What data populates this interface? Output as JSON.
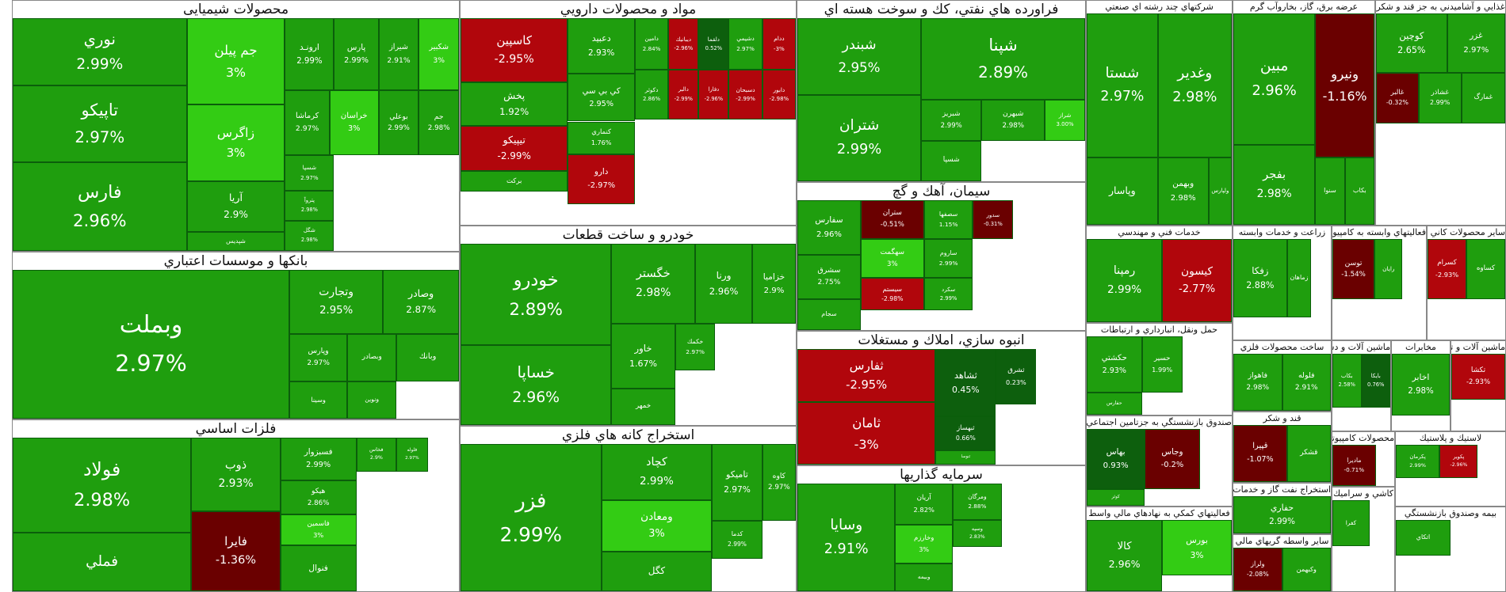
{
  "colors": {
    "up_strong": "#1f9e0e",
    "up_bright": "#33cc14",
    "up_dark": "#0d5f0d",
    "down": "#b1060c",
    "down_dark": "#6a0000"
  },
  "sectors": [
    {
      "id": "chem",
      "title": "محصولات شیمیایی",
      "tiles": [
        {
          "sym": "نوري",
          "chg": "2.99%"
        },
        {
          "sym": "تاپيكو",
          "chg": "2.97%"
        },
        {
          "sym": "فارس",
          "chg": "2.96%"
        },
        {
          "sym": "جم پيلن",
          "chg": "3%"
        },
        {
          "sym": "زاگرس",
          "chg": "3%"
        },
        {
          "sym": "آريا",
          "chg": "2.9%"
        },
        {
          "sym": "شپديس",
          "chg": ""
        },
        {
          "sym": "ارونـد",
          "chg": "2.99%"
        },
        {
          "sym": "پارس",
          "chg": "2.99%"
        },
        {
          "sym": "شيراز",
          "chg": "2.91%"
        },
        {
          "sym": "شكبير",
          "chg": "3%"
        },
        {
          "sym": "كرماشا",
          "chg": "2.97%"
        },
        {
          "sym": "خراسان",
          "chg": "3%"
        },
        {
          "sym": "بوعلي",
          "chg": "2.99%"
        },
        {
          "sym": "جم",
          "chg": "2.98%"
        },
        {
          "sym": "شسپا",
          "chg": "2.97%"
        },
        {
          "sym": "پتروآ",
          "chg": "2.98%"
        },
        {
          "sym": "شگل",
          "chg": "2.98%"
        },
        {
          "sym": "شغدير",
          "chg": "3%"
        }
      ]
    },
    {
      "id": "pharma",
      "title": "مواد و محصولات دارويي",
      "tiles": [
        {
          "sym": "كاسپين",
          "chg": "-2.95%"
        },
        {
          "sym": "پخش",
          "chg": "1.92%"
        },
        {
          "sym": "تيپيكو",
          "chg": "-2.99%"
        },
        {
          "sym": "بركت",
          "chg": ""
        },
        {
          "sym": "دعبيد",
          "chg": "2.93%"
        },
        {
          "sym": "كي بي سي",
          "chg": "2.95%"
        },
        {
          "sym": "كنماري",
          "chg": "1.76%"
        },
        {
          "sym": "دارو",
          "chg": "-2.97%"
        },
        {
          "sym": "دامين",
          "chg": "2.84%"
        },
        {
          "sym": "ديبانيك",
          "chg": "-2.96%"
        },
        {
          "sym": "دلقما",
          "chg": "0.52%"
        },
        {
          "sym": "دشيمي",
          "chg": "2.97%"
        },
        {
          "sym": "ددام",
          "chg": "-3%"
        },
        {
          "sym": "دكوثر",
          "chg": "2.86%"
        },
        {
          "sym": "دالبر",
          "chg": "-2.99%"
        },
        {
          "sym": "دفارا",
          "chg": "-2.96%"
        },
        {
          "sym": "دسبحان",
          "chg": "-2.99%"
        },
        {
          "sym": "دابور",
          "chg": "-2.98%"
        }
      ]
    },
    {
      "id": "oil",
      "title": "فراورده هاي نفتي، كك و سوخت هسته اي",
      "tiles": [
        {
          "sym": "شبندر",
          "chg": "2.95%"
        },
        {
          "sym": "شتران",
          "chg": "2.99%"
        },
        {
          "sym": "شپنا",
          "chg": "2.89%"
        },
        {
          "sym": "شبريز",
          "chg": "2.99%"
        },
        {
          "sym": "شبهرن",
          "chg": "2.98%"
        },
        {
          "sym": "شراز",
          "chg": "3.00%"
        },
        {
          "sym": "شسپا",
          "chg": ""
        }
      ]
    },
    {
      "id": "multi",
      "title": "شركتهاي چند رشته اي صنعتي",
      "tiles": [
        {
          "sym": "شستا",
          "chg": "2.97%"
        },
        {
          "sym": "وغدير",
          "chg": "2.98%"
        },
        {
          "sym": "وپاسار",
          "chg": ""
        },
        {
          "sym": "وبهمن",
          "chg": "2.98%"
        },
        {
          "sym": "ولپارس",
          "chg": ""
        }
      ]
    },
    {
      "id": "utility",
      "title": "عرضه برق، گاز، بخاروآب گرم",
      "tiles": [
        {
          "sym": "مبين",
          "chg": "2.96%"
        },
        {
          "sym": "بفجر",
          "chg": "2.98%"
        },
        {
          "sym": "ونيرو",
          "chg": "-1.16%"
        },
        {
          "sym": "سنوا",
          "chg": ""
        },
        {
          "sym": "بكاب",
          "chg": ""
        }
      ]
    },
    {
      "id": "food",
      "title": "غذايي و آشاميدني به جز قند و شكر",
      "tiles": [
        {
          "sym": "كوچين",
          "chg": "2.65%"
        },
        {
          "sym": "غزر",
          "chg": "2.97%"
        },
        {
          "sym": "غالبر",
          "chg": "-0.32%"
        },
        {
          "sym": "غشاذر",
          "chg": "2.99%"
        },
        {
          "sym": "غمارگ",
          "chg": ""
        }
      ]
    },
    {
      "id": "banks",
      "title": "بانكها و موسسات اعتباري",
      "tiles": [
        {
          "sym": "وبملت",
          "chg": "2.97%"
        },
        {
          "sym": "وتجارت",
          "chg": "2.95%"
        },
        {
          "sym": "وصادر",
          "chg": "2.87%"
        },
        {
          "sym": "وپارس",
          "chg": "2.97%"
        },
        {
          "sym": "وبصادر",
          "chg": ""
        },
        {
          "sym": "وبانك",
          "chg": ""
        },
        {
          "sym": "وسينا",
          "chg": ""
        },
        {
          "sym": "ونوين",
          "chg": ""
        }
      ]
    },
    {
      "id": "auto",
      "title": "خودرو و ساخت قطعات",
      "tiles": [
        {
          "sym": "خودرو",
          "chg": "2.89%"
        },
        {
          "sym": "خساپا",
          "chg": "2.96%"
        },
        {
          "sym": "خگستر",
          "chg": "2.98%"
        },
        {
          "sym": "ورنا",
          "chg": "2.96%"
        },
        {
          "sym": "خزاميا",
          "chg": "2.9%"
        },
        {
          "sym": "خاور",
          "chg": "1.67%"
        },
        {
          "sym": "خكمك",
          "chg": "2.97%"
        },
        {
          "sym": "خمهر",
          "chg": ""
        }
      ]
    },
    {
      "id": "cement",
      "title": "سيمان، آهك و گچ",
      "tiles": [
        {
          "sym": "سفارس",
          "chg": "2.96%"
        },
        {
          "sym": "سشرق",
          "chg": "2.75%"
        },
        {
          "sym": "سجام",
          "chg": ""
        },
        {
          "sym": "ستران",
          "chg": "-0.51%"
        },
        {
          "sym": "سصفها",
          "chg": "1.15%"
        },
        {
          "sym": "سدور",
          "chg": "-0.31%"
        },
        {
          "sym": "سهگمت",
          "chg": "3%"
        },
        {
          "sym": "ساروم",
          "chg": "2.99%"
        },
        {
          "sym": "سيستم",
          "chg": "-2.98%"
        },
        {
          "sym": "سكرد",
          "chg": "2.99%"
        }
      ]
    },
    {
      "id": "realestate",
      "title": "انبوه سازي، املاك و مستغلات",
      "tiles": [
        {
          "sym": "ثفارس",
          "chg": "-2.95%"
        },
        {
          "sym": "ثامان",
          "chg": "-3%"
        },
        {
          "sym": "ثشاهد",
          "chg": "0.45%"
        },
        {
          "sym": "ثبهساز",
          "chg": "0.66%"
        },
        {
          "sym": "ثشرق",
          "chg": "0.23%"
        },
        {
          "sym": "ثنوسا",
          "chg": ""
        }
      ]
    },
    {
      "id": "metals",
      "title": "فلزات اساسي",
      "tiles": [
        {
          "sym": "فولاد",
          "chg": "2.98%"
        },
        {
          "sym": "فملي",
          "chg": ""
        },
        {
          "sym": "ذوب",
          "chg": "2.93%"
        },
        {
          "sym": "فايرا",
          "chg": "-1.36%"
        },
        {
          "sym": "فسبزوار",
          "chg": "2.99%"
        },
        {
          "sym": "هيكو",
          "chg": "2.86%"
        },
        {
          "sym": "فاسمين",
          "chg": "3%"
        },
        {
          "sym": "فنوال",
          "chg": ""
        },
        {
          "sym": "فخاس",
          "chg": "2.9%"
        },
        {
          "sym": "فلوله",
          "chg": "2.97%"
        }
      ]
    },
    {
      "id": "mining",
      "title": "استخراج كانه هاي فلزي",
      "tiles": [
        {
          "sym": "فزر",
          "chg": "2.99%"
        },
        {
          "sym": "كچاد",
          "chg": "2.99%"
        },
        {
          "sym": "ومعادن",
          "chg": "3%"
        },
        {
          "sym": "كگل",
          "chg": ""
        },
        {
          "sym": "تاميكو",
          "chg": "2.97%"
        },
        {
          "sym": "كاوه",
          "chg": "2.97%"
        },
        {
          "sym": "كدما",
          "chg": "2.99%"
        }
      ]
    },
    {
      "id": "investment",
      "title": "سرمايه گذاريها",
      "tiles": [
        {
          "sym": "وسايا",
          "chg": "2.91%"
        },
        {
          "sym": "آريان",
          "chg": "2.82%"
        },
        {
          "sym": "وخارزم",
          "chg": "3%"
        },
        {
          "sym": "ومرگان",
          "chg": "2.88%"
        },
        {
          "sym": "وسپه",
          "chg": "2.83%"
        },
        {
          "sym": "وبيمه",
          "chg": ""
        }
      ]
    },
    {
      "id": "eng",
      "title": "خدمات فني و مهندسي",
      "tiles": [
        {
          "sym": "رمپنا",
          "chg": "2.99%"
        },
        {
          "sym": "كيسون",
          "chg": "-2.77%"
        }
      ]
    },
    {
      "id": "transport",
      "title": "حمل ونقل، انبارداري و ارتباطات",
      "tiles": [
        {
          "sym": "حكشتي",
          "chg": "2.93%"
        },
        {
          "sym": "حسير",
          "chg": "1.99%"
        },
        {
          "sym": "حفارس",
          "chg": ""
        }
      ]
    },
    {
      "id": "pension",
      "title": "صندوق بازنشستگي به جزتامين اجتماعي",
      "tiles": [
        {
          "sym": "بهاس",
          "chg": "0.93%"
        },
        {
          "sym": "وجاس",
          "chg": "-0.2%"
        },
        {
          "sym": "كوثر",
          "chg": ""
        }
      ]
    },
    {
      "id": "finance",
      "title": "فعاليتهاي كمكي به نهادهاي مالي واسط",
      "tiles": [
        {
          "sym": "كالا",
          "chg": "2.96%"
        },
        {
          "sym": "بورس",
          "chg": "3%"
        }
      ]
    },
    {
      "id": "agri",
      "title": "زراعت و خدمات وابسته",
      "tiles": [
        {
          "sym": "زفكا",
          "chg": "2.88%"
        },
        {
          "sym": "زماهان",
          "chg": ""
        }
      ]
    },
    {
      "id": "oilsvc",
      "title": "استخراج نفت گاز و خدمات جنبي جز اكتشاف",
      "tiles": [
        {
          "sym": "حفاري",
          "chg": "2.99%"
        }
      ]
    },
    {
      "id": "metalprod",
      "title": "ساخت محصولات فلزي",
      "tiles": [
        {
          "sym": "فاهواز",
          "chg": "2.98%"
        },
        {
          "sym": "فلوله",
          "chg": "2.91%"
        }
      ]
    },
    {
      "id": "sugar",
      "title": "قند و شكر",
      "tiles": [
        {
          "sym": "قپيرا",
          "chg": "-1.07%"
        },
        {
          "sym": "قشكر",
          "chg": ""
        }
      ]
    },
    {
      "id": "otherfin",
      "title": "ساير واسطه گريهاي مالي",
      "tiles": [
        {
          "sym": "ولراز",
          "chg": "-2.08%"
        },
        {
          "sym": "وكبهمن",
          "chg": ""
        }
      ]
    },
    {
      "id": "it",
      "title": "فعاليتهاي وابسته به كامپيوتر",
      "tiles": [
        {
          "sym": "توسن",
          "chg": "-1.54%"
        },
        {
          "sym": "رايان",
          "chg": ""
        }
      ]
    },
    {
      "id": "nonmetal",
      "title": "ساير محصولات كاني غيرفلزي",
      "tiles": [
        {
          "sym": "كسرام",
          "chg": "-2.93%"
        },
        {
          "sym": "كساوه",
          "chg": ""
        }
      ]
    },
    {
      "id": "machinery",
      "title": "ماشين آلات و تجهيزات",
      "tiles": [
        {
          "sym": "تكشا",
          "chg": "-2.93%"
        }
      ]
    },
    {
      "id": "electric",
      "title": "ماشين آلات و دستگاههاي برقي",
      "tiles": [
        {
          "sym": "بكاب",
          "chg": "2.58%"
        },
        {
          "sym": "بايكا",
          "chg": "0.76%"
        }
      ]
    },
    {
      "id": "mines",
      "title": "مخابرات",
      "tiles": [
        {
          "sym": "اخابر",
          "chg": "2.98%"
        }
      ]
    },
    {
      "id": "electronics",
      "title": "محصولات كامپيوتري الكترونيكي",
      "tiles": [
        {
          "sym": "مادیرا",
          "chg": "-0.71%"
        }
      ]
    },
    {
      "id": "tire",
      "title": "لاستيك و پلاستيك",
      "tiles": [
        {
          "sym": "پكرمان",
          "chg": "2.99%"
        },
        {
          "sym": "پكوير",
          "chg": "-2.96%"
        }
      ]
    },
    {
      "id": "tiles",
      "title": "كاشي و سراميك",
      "tiles": [
        {
          "sym": "كفرا",
          "chg": ""
        }
      ]
    },
    {
      "id": "insurance",
      "title": "بيمه وصندوق بازنشستگي",
      "tiles": [
        {
          "sym": "اتكاي",
          "chg": ""
        }
      ]
    }
  ]
}
